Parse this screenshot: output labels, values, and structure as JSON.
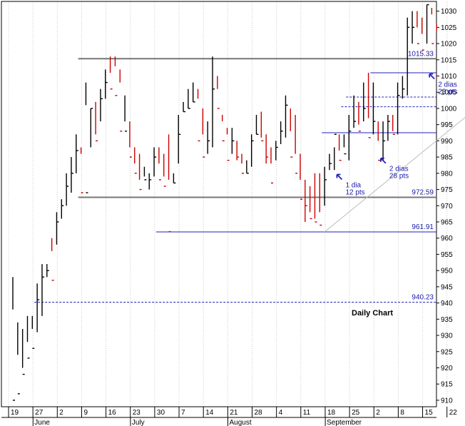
{
  "chart_data": {
    "type": "ohlc",
    "title": "Daily Chart",
    "y_ticks": [
      910,
      915,
      920,
      925,
      930,
      935,
      940,
      945,
      950,
      955,
      960,
      965,
      970,
      975,
      980,
      985,
      990,
      995,
      1000,
      1005,
      1010,
      1015,
      1020,
      1025,
      1030
    ],
    "ylim": [
      908,
      1033
    ],
    "x_ticks": [
      "19",
      "27",
      "2",
      "9",
      "16",
      "23",
      "30",
      "7",
      "14",
      "21",
      "28",
      "4",
      "11",
      "18",
      "25",
      "2",
      "8",
      "15",
      "22"
    ],
    "x_months": [
      "June",
      "July",
      "August",
      "September"
    ],
    "colors": {
      "up": "#000000",
      "down": "#cc0000",
      "level_gray": "#777777",
      "level_blue": "#2222bb",
      "trend": "#bbbbbb"
    },
    "bars": [
      [
        948,
        938,
        910
      ],
      [
        934,
        924,
        912
      ],
      [
        932,
        920,
        918
      ],
      [
        928,
        936,
        923
      ],
      [
        936,
        932,
        926
      ],
      [
        946,
        931,
        941
      ],
      [
        952,
        936,
        948
      ],
      [
        952,
        948,
        950
      ],
      [
        960,
        956,
        947
      ],
      [
        968,
        958,
        965
      ],
      [
        972,
        966,
        970
      ],
      [
        980,
        970,
        976
      ],
      [
        985,
        974,
        980
      ],
      [
        992,
        980,
        987
      ],
      [
        988,
        986,
        974
      ],
      [
        1008,
        1001,
        974
      ],
      [
        1000,
        988,
        1000
      ],
      [
        1002,
        992,
        990
      ],
      [
        1006,
        996,
        1003
      ],
      [
        1012,
        1003,
        1008
      ],
      [
        1016,
        1011,
        1006
      ],
      [
        1016,
        1013,
        1004
      ],
      [
        1012,
        1008,
        993
      ],
      [
        1004,
        996,
        993
      ],
      [
        996,
        988,
        985
      ],
      [
        988,
        983,
        980
      ],
      [
        986,
        978,
        975
      ],
      [
        982,
        979,
        978
      ],
      [
        980,
        975,
        978
      ],
      [
        988,
        979,
        985
      ],
      [
        988,
        983,
        978
      ],
      [
        986,
        979,
        976
      ],
      [
        992,
        978,
        962
      ],
      [
        980,
        977,
        977
      ],
      [
        998,
        983,
        992
      ],
      [
        1002,
        999,
        999
      ],
      [
        1006,
        1000,
        1000
      ],
      [
        1008,
        1002,
        1002
      ],
      [
        1006,
        1003,
        990
      ],
      [
        1000,
        992,
        985
      ],
      [
        996,
        986,
        990
      ],
      [
        1016,
        988,
        1006
      ],
      [
        1010,
        1006,
        1000
      ],
      [
        998,
        996,
        990
      ],
      [
        994,
        992,
        984
      ],
      [
        994,
        986,
        990
      ],
      [
        990,
        984,
        985
      ],
      [
        986,
        983,
        980
      ],
      [
        984,
        980,
        980
      ],
      [
        992,
        982,
        990
      ],
      [
        998,
        992,
        992
      ],
      [
        999,
        991,
        990
      ],
      [
        992,
        983,
        985
      ],
      [
        988,
        983,
        977
      ],
      [
        990,
        984,
        988
      ],
      [
        996,
        989,
        993
      ],
      [
        1004,
        991,
        1001
      ],
      [
        1000,
        993,
        985
      ],
      [
        998,
        986,
        980
      ],
      [
        986,
        978,
        972
      ],
      [
        978,
        965,
        970
      ],
      [
        976,
        968,
        966
      ],
      [
        980,
        966,
        965
      ],
      [
        980,
        968,
        964
      ],
      [
        982,
        970,
        978
      ],
      [
        986,
        981,
        983
      ],
      [
        988,
        981,
        992
      ],
      [
        992,
        987,
        984
      ],
      [
        992,
        988,
        986
      ],
      [
        998,
        984,
        993
      ],
      [
        1004,
        994,
        996
      ],
      [
        1002,
        995,
        993
      ],
      [
        1008,
        996,
        1000
      ],
      [
        1011,
        997,
        991
      ],
      [
        1008,
        992,
        996
      ],
      [
        996,
        990,
        984
      ],
      [
        996,
        984,
        990
      ],
      [
        998,
        990,
        996
      ],
      [
        998,
        993,
        992
      ],
      [
        1008,
        992,
        1004
      ],
      [
        1010,
        1003,
        1006
      ],
      [
        1028,
        1004,
        1025
      ],
      [
        1030,
        1020,
        1025
      ],
      [
        1030,
        1025,
        1020
      ],
      [
        1028,
        1023,
        1018
      ],
      [
        1032,
        1020,
        1032
      ],
      [
        1031,
        1029,
        1020
      ],
      [
        1026,
        1024,
        1010
      ]
    ],
    "levels": [
      {
        "value": 1015.33,
        "label": "1015.33",
        "style": "solid",
        "color": "gray",
        "from_bar": 14
      },
      {
        "value": 1011,
        "label": "",
        "style": "solid",
        "color": "blue",
        "from_bar": 74
      },
      {
        "value": 1003.5,
        "label": "",
        "style": "dashed",
        "color": "blue",
        "from_bar": 69
      },
      {
        "value": 1000.5,
        "label": "",
        "style": "dashed",
        "color": "blue",
        "from_bar": 68
      },
      {
        "value": 992.5,
        "label": "",
        "style": "solid",
        "color": "blue",
        "from_bar": 64
      },
      {
        "value": 972.59,
        "label": "972.59",
        "style": "solid",
        "color": "gray",
        "from_bar": 14
      },
      {
        "value": 961.91,
        "label": "961.91",
        "style": "solid",
        "color": "blue",
        "from_bar": 30
      },
      {
        "value": 940.23,
        "label": "940.23",
        "style": "dashed",
        "color": "blue",
        "from_bar": 5
      }
    ],
    "annotations": [
      {
        "lines": [
          "1 dia",
          "12 pts"
        ],
        "bar": 68,
        "y": 977
      },
      {
        "lines": [
          "2 dias",
          "28 pts"
        ],
        "bar": 77,
        "y": 982
      },
      {
        "lines": [
          "2 dias",
          "23 pts"
        ],
        "bar": 87,
        "y": 1008
      }
    ],
    "trendline": {
      "from": [
        64,
        961.91
      ],
      "to": [
        100,
        1006
      ]
    }
  }
}
